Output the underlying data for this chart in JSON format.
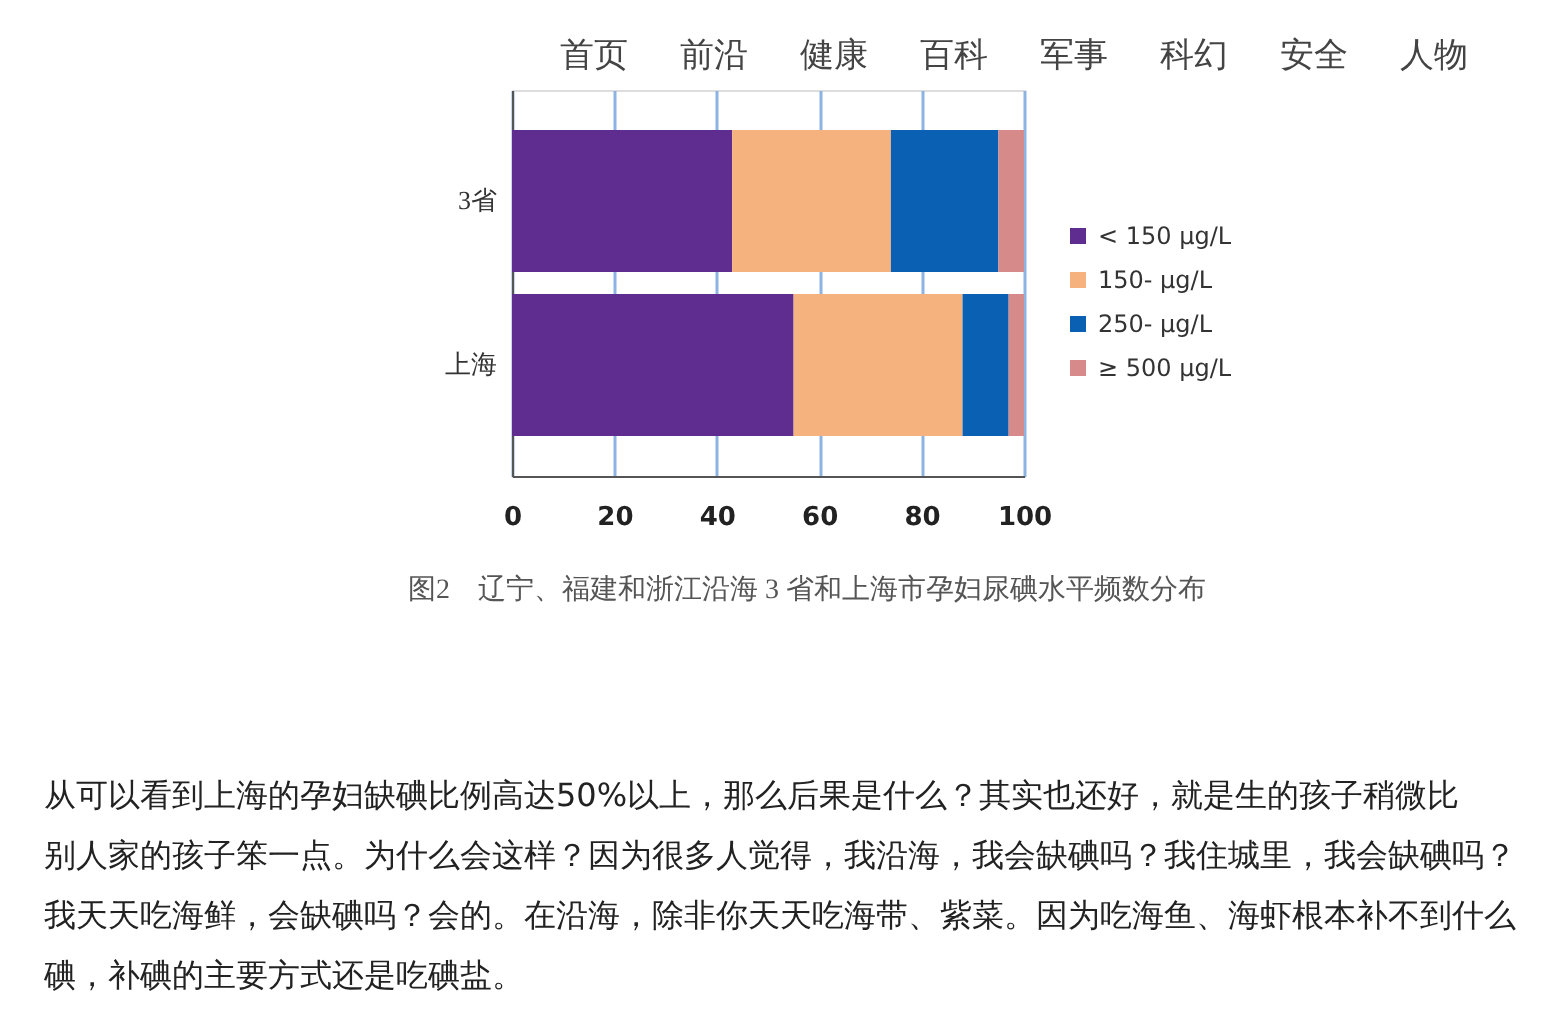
{
  "chart_data": {
    "type": "bar",
    "orientation": "horizontal",
    "stacked": true,
    "title": "图2　辽宁、福建和浙江沿海 3 省和上海市孕妇尿碘水平频数分布",
    "categories": [
      "3省",
      "上海"
    ],
    "series": [
      {
        "name": "< 150 μg/L",
        "color": "#5e2d8f",
        "values": [
          43,
          55
        ]
      },
      {
        "name": "150- μg/L",
        "color": "#f5b27e",
        "values": [
          31,
          33
        ]
      },
      {
        "name": "250- μg/L",
        "color": "#0a60b2",
        "values": [
          21,
          9
        ]
      },
      {
        "name": "≥ 500 μg/L",
        "color": "#d68a8a",
        "values": [
          5,
          3
        ]
      }
    ],
    "xlim": [
      0,
      100
    ],
    "xticks": [
      0,
      20,
      40,
      60,
      80,
      100
    ],
    "grid": "x",
    "legend": "right",
    "annotations": [
      "首页",
      "前沿",
      "健康",
      "百科",
      "军事",
      "科幻",
      "安全",
      "人物",
      "从可以看到上海的孕妇缺碘比例高达50%以上，那么后果是什么？其实也还好，就是生的孩子稍微比别人家的孩子笨一点。为什么会这样？因为很多人觉得，我沿海，我会缺碘吗？我住城里，我会缺碘吗？我天天吃海鲜，会缺碘吗？会的。在沿海，除非你天天吃海带、紫菜。因为吃海鱼、海虾根本补不到什么碘，补碘的主要方式还是吃碘盐。"
    ]
  }
}
